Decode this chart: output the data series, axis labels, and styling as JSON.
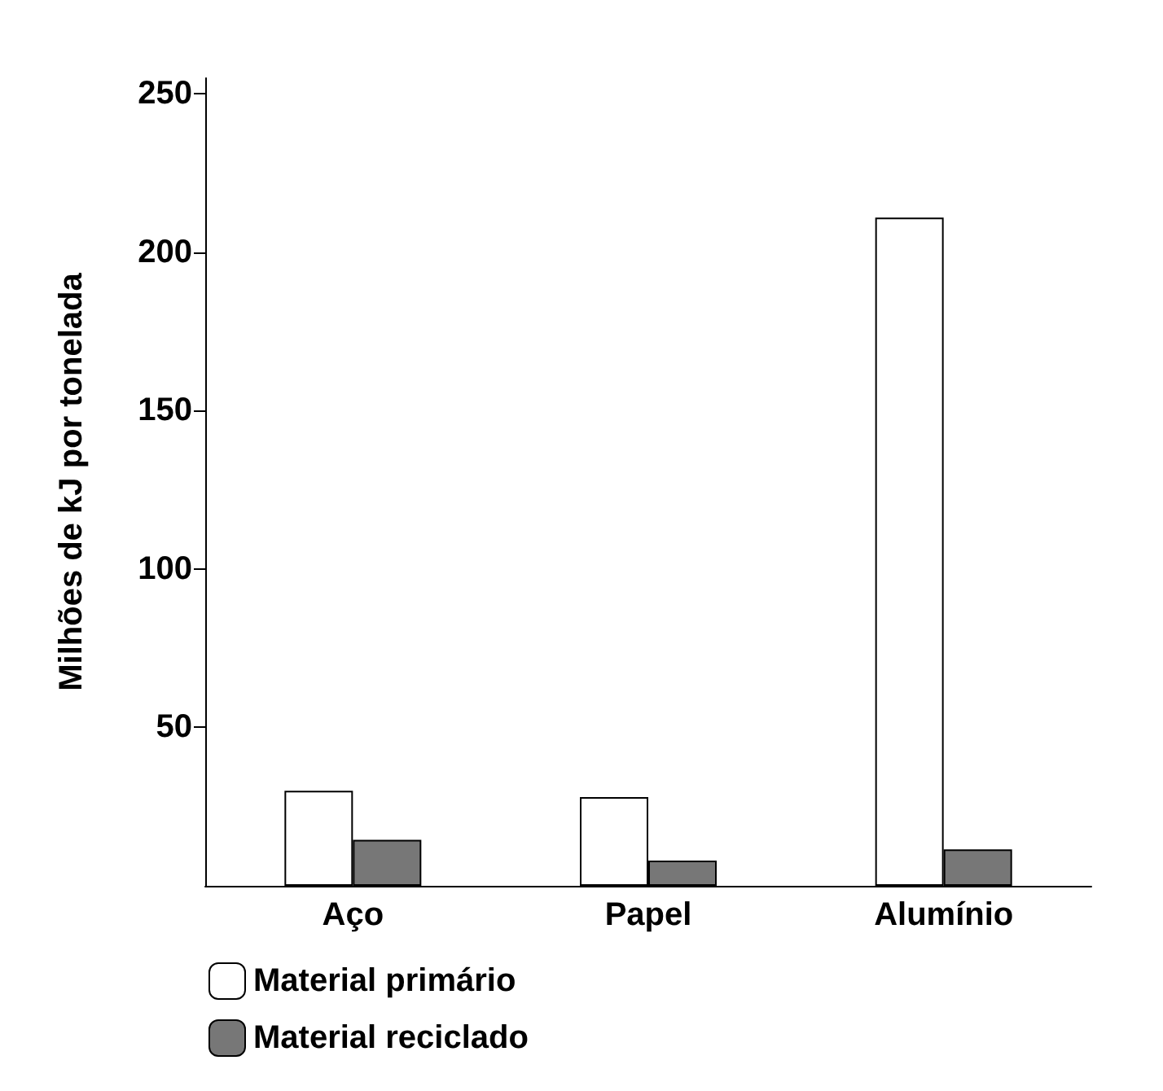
{
  "chart_data": {
    "type": "bar",
    "ylabel": "Milhões de kJ por tonelada",
    "categories": [
      "Aço",
      "Papel",
      "Alumínio"
    ],
    "series": [
      {
        "name": "Material primário",
        "color": "#ffffff",
        "values": [
          30,
          28,
          211
        ]
      },
      {
        "name": "Material reciclado",
        "color": "#777777",
        "values": [
          14.5,
          8,
          11.5
        ]
      }
    ],
    "ylim": [
      0,
      255
    ],
    "yticks": [
      50,
      100,
      150,
      200,
      250
    ],
    "grid": false,
    "legend": "bottom left"
  }
}
